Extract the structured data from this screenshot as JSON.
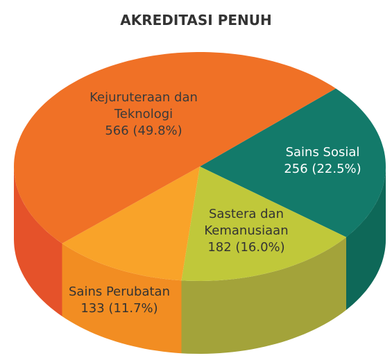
{
  "chart_data": {
    "type": "pie3d",
    "title": "AKREDITASI PENUH",
    "categories": [
      "Sains Sosial",
      "Sastera dan Kemanusiaan",
      "Sains Perubatan",
      "Kejuruteraan dan Teknologi"
    ],
    "values": [
      256,
      182,
      133,
      566
    ],
    "value_labels": [
      "256 (22.5%)",
      "182 (16.0%)",
      "133 (11.7%)",
      "566 (49.8%)"
    ],
    "colors": [
      "#137a6a",
      "#c0c83a",
      "#f9a329",
      "#f07126"
    ],
    "side_colors": [
      "#0e6858",
      "#a3a33a",
      "#f28d22",
      "#e5522a"
    ]
  }
}
